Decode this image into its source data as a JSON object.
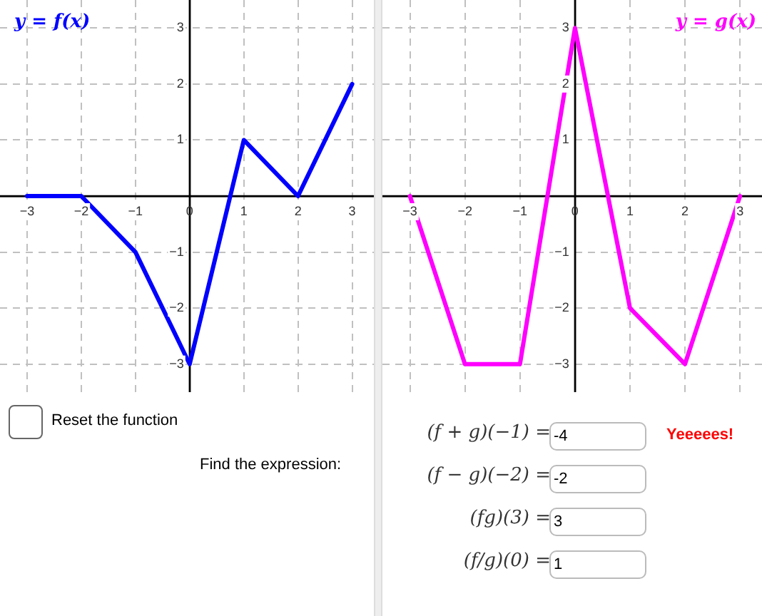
{
  "chart_data": [
    {
      "type": "line",
      "title": "y = f(x)",
      "x": [
        -3,
        -2,
        -1,
        0,
        1,
        2,
        3
      ],
      "series": [
        {
          "color": "#0000ff",
          "values": [
            0,
            0,
            -1,
            -3,
            1,
            0,
            2
          ]
        }
      ],
      "xlim": [
        -3.5,
        3.4
      ],
      "ylim": [
        -3.5,
        3.5
      ],
      "xticks": [
        -3,
        -2,
        -1,
        0,
        1,
        2,
        3
      ],
      "yticks": [
        -3,
        -2,
        -1,
        {
          "value": 0,
          "label": null
        },
        1,
        2,
        3
      ],
      "grid": true,
      "legend": false,
      "marker": "none",
      "line_style": "solid",
      "annotations": [
        "Reset the function",
        "Find the expression:"
      ]
    },
    {
      "type": "line",
      "title": "y = g(x)",
      "x": [
        -3,
        -2,
        -1,
        0,
        1,
        2,
        3
      ],
      "series": [
        {
          "color": "#ff00ff",
          "values": [
            0,
            -3,
            -3,
            3,
            -2,
            -3,
            0
          ]
        }
      ],
      "xlim": [
        -3.5,
        3.4
      ],
      "ylim": [
        -3.5,
        3.5
      ],
      "xticks": [
        -3,
        -2,
        -1,
        0,
        1,
        2,
        3
      ],
      "yticks": [
        -3,
        -2,
        -1,
        {
          "value": 0,
          "label": null
        },
        1,
        2,
        3
      ],
      "grid": true,
      "legend": false,
      "marker": "none",
      "line_style": "solid",
      "annotations": [
        "(f + g)(−1) =",
        "-4",
        "(f − g)(−2) =",
        "-2",
        "(fg)(3) =",
        "3",
        "(f/g)(0) =",
        "1",
        "Yeeeees!"
      ]
    }
  ]
}
